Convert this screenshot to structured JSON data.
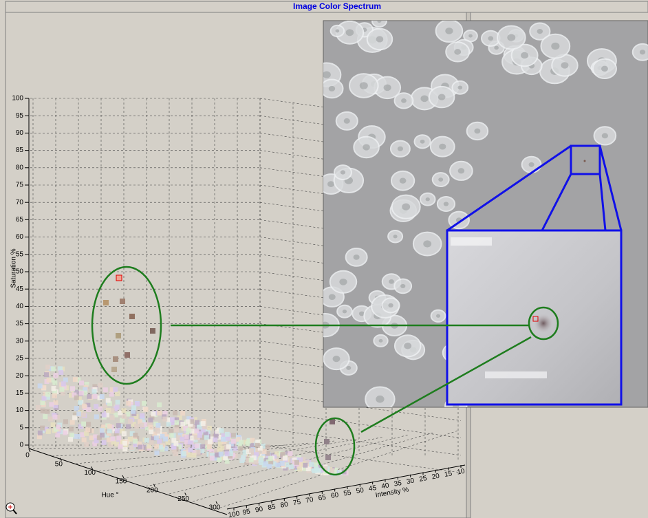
{
  "window": {
    "title": "Image Color Spectrum"
  },
  "plot": {
    "saturation_axis": {
      "label": "Saturation %",
      "ticks": [
        0,
        5,
        10,
        15,
        20,
        25,
        30,
        35,
        40,
        45,
        50,
        55,
        60,
        65,
        70,
        75,
        80,
        85,
        90,
        95,
        100
      ]
    },
    "hue_axis": {
      "label": "Hue °",
      "ticks": [
        0,
        50,
        100,
        150,
        200,
        250,
        300
      ]
    },
    "intensity_axis": {
      "label": "Intensity %",
      "ticks": [
        100,
        95,
        90,
        85,
        80,
        75,
        70,
        65,
        60,
        55,
        50,
        45,
        40,
        35,
        30,
        25,
        20,
        15,
        10
      ]
    }
  }
}
